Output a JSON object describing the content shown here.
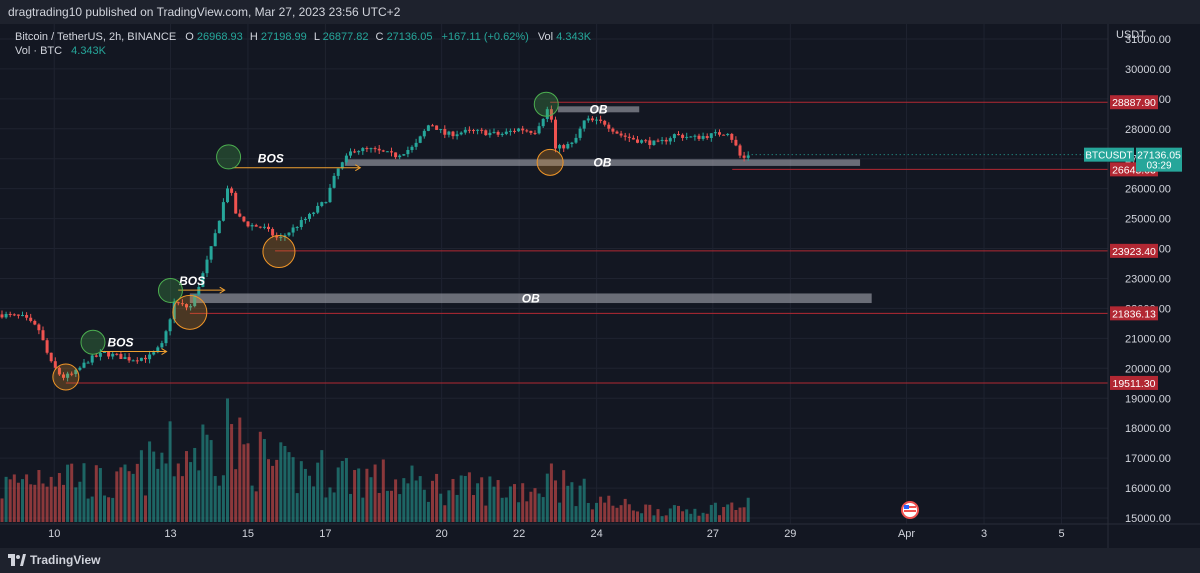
{
  "header": {
    "publisher_line": "dragtrading10 published on TradingView.com, Mar 27, 2023 23:56 UTC+2"
  },
  "legend": {
    "symbol": "Bitcoin / TetherUS, 2h, BINANCE",
    "o_label": "O",
    "o_value": "26968.93",
    "h_label": "H",
    "h_value": "27198.99",
    "l_label": "L",
    "l_value": "26877.82",
    "c_label": "C",
    "c_value": "27136.05",
    "change": "+167.11 (+0.62%)",
    "vol_label": "Vol",
    "vol_value": "4.343K",
    "vol_line_label": "Vol · BTC",
    "vol_line_value": "4.343K"
  },
  "footer": {
    "brand": "TradingView"
  },
  "colors": {
    "bg": "#131722",
    "up": "#26a69a",
    "down": "#ef5350",
    "level": "#b22833",
    "zone": "#b2b5be",
    "arrow": "#f0a030",
    "grid": "#1f2330",
    "text": "#d1d4dc"
  },
  "chart_data": {
    "type": "candlestick",
    "currency": "USDT",
    "ylim": [
      14800,
      31500
    ],
    "y_ticks": [
      "31000.00",
      "30000.00",
      "29000.00",
      "28000.00",
      "27000.00",
      "26000.00",
      "25000.00",
      "24000.00",
      "23000.00",
      "22000.00",
      "21000.00",
      "20000.00",
      "19000.00",
      "18000.00",
      "17000.00",
      "16000.00",
      "15000.00"
    ],
    "x_ticks": [
      {
        "label": "10",
        "day": 10
      },
      {
        "label": "13",
        "day": 13
      },
      {
        "label": "15",
        "day": 15
      },
      {
        "label": "17",
        "day": 17
      },
      {
        "label": "20",
        "day": 20
      },
      {
        "label": "22",
        "day": 22
      },
      {
        "label": "24",
        "day": 24
      },
      {
        "label": "27",
        "day": 27
      },
      {
        "label": "29",
        "day": 29
      },
      {
        "label": "Apr",
        "day": 32
      },
      {
        "label": "3",
        "day": 34
      },
      {
        "label": "5",
        "day": 36
      }
    ],
    "xlim_days": [
      8.6,
      37.2
    ],
    "last_day": 27.9,
    "price_path": [
      [
        8.6,
        21800
      ],
      [
        9.2,
        21700
      ],
      [
        9.6,
        21300
      ],
      [
        9.9,
        20200
      ],
      [
        10.2,
        19700
      ],
      [
        10.5,
        19800
      ],
      [
        10.9,
        20300
      ],
      [
        11.3,
        20500
      ],
      [
        12.0,
        20300
      ],
      [
        12.5,
        20400
      ],
      [
        12.8,
        20800
      ],
      [
        13.1,
        22200
      ],
      [
        13.5,
        22000
      ],
      [
        13.8,
        23000
      ],
      [
        14.1,
        24200
      ],
      [
        14.5,
        26200
      ],
      [
        14.7,
        25100
      ],
      [
        15.0,
        24800
      ],
      [
        15.4,
        24700
      ],
      [
        15.8,
        24300
      ],
      [
        16.2,
        24700
      ],
      [
        16.6,
        25100
      ],
      [
        17.0,
        25600
      ],
      [
        17.3,
        26600
      ],
      [
        17.7,
        27300
      ],
      [
        18.2,
        27300
      ],
      [
        18.8,
        27100
      ],
      [
        19.3,
        27400
      ],
      [
        19.7,
        28200
      ],
      [
        20.1,
        27800
      ],
      [
        20.6,
        27900
      ],
      [
        21.0,
        27900
      ],
      [
        21.5,
        27800
      ],
      [
        22.0,
        28000
      ],
      [
        22.4,
        27900
      ],
      [
        22.8,
        28800
      ],
      [
        22.9,
        27300
      ],
      [
        23.1,
        27400
      ],
      [
        23.4,
        27500
      ],
      [
        23.7,
        28300
      ],
      [
        24.2,
        28200
      ],
      [
        24.6,
        27800
      ],
      [
        25.1,
        27600
      ],
      [
        25.6,
        27500
      ],
      [
        26.0,
        27800
      ],
      [
        26.5,
        27700
      ],
      [
        27.0,
        27800
      ],
      [
        27.4,
        27900
      ],
      [
        27.6,
        27400
      ],
      [
        27.75,
        26950
      ],
      [
        27.9,
        27136
      ]
    ],
    "volume_path": [
      [
        8.6,
        0.3
      ],
      [
        10,
        0.5
      ],
      [
        11.5,
        0.3
      ],
      [
        13,
        0.6
      ],
      [
        14.5,
        0.7
      ],
      [
        16,
        0.45
      ],
      [
        17.5,
        0.45
      ],
      [
        19,
        0.35
      ],
      [
        20.5,
        0.3
      ],
      [
        22,
        0.3
      ],
      [
        23,
        0.35
      ],
      [
        24.5,
        0.15
      ],
      [
        26,
        0.1
      ],
      [
        27.9,
        0.15
      ]
    ],
    "volume_spikes": [
      [
        13.8,
        0.75
      ],
      [
        14.5,
        0.95
      ],
      [
        13.2,
        0.45
      ],
      [
        17.5,
        0.5
      ],
      [
        22.8,
        0.45
      ]
    ],
    "levels": [
      {
        "price": 28887.9,
        "label": "28887.90",
        "from_day": 22.8
      },
      {
        "price": 26645.03,
        "label": "26645.03",
        "from_day": 27.5
      },
      {
        "price": 23923.4,
        "label": "23923.40",
        "from_day": 15.7
      },
      {
        "price": 21836.13,
        "label": "21836.13",
        "from_day": 13.5
      },
      {
        "price": 19511.3,
        "label": "19511.30",
        "from_day": 10.3
      }
    ],
    "zones": [
      {
        "label": "OB",
        "top": 28750,
        "bottom": 28550,
        "from_day": 23.0,
        "to_day": 25.1
      },
      {
        "label": "OB",
        "top": 26980,
        "bottom": 26760,
        "from_day": 17.5,
        "to_day": 30.8
      },
      {
        "label": "OB",
        "top": 22500,
        "bottom": 22180,
        "from_day": 13.5,
        "to_day": 31.1
      }
    ],
    "bos": [
      {
        "label": "BOS",
        "day_from": 11.2,
        "day_to": 12.9,
        "price": 20560
      },
      {
        "label": "BOS",
        "day_from": 14.6,
        "day_to": 17.9,
        "price": 26700
      },
      {
        "label": "BOS",
        "day_from": 13.2,
        "day_to": 14.4,
        "price": 22610
      }
    ],
    "circles_top": [
      [
        11.0,
        20870
      ],
      [
        14.5,
        27060
      ],
      [
        13.0,
        22600
      ],
      [
        22.7,
        28820
      ]
    ],
    "circles_bottom": [
      [
        10.3,
        19710
      ],
      [
        15.8,
        23900
      ],
      [
        13.5,
        21870
      ],
      [
        22.8,
        26880
      ]
    ],
    "price_tag": {
      "symbol": "BTCUSDT",
      "price": "27136.05",
      "countdown": "03:29",
      "value": 27136.05
    }
  }
}
